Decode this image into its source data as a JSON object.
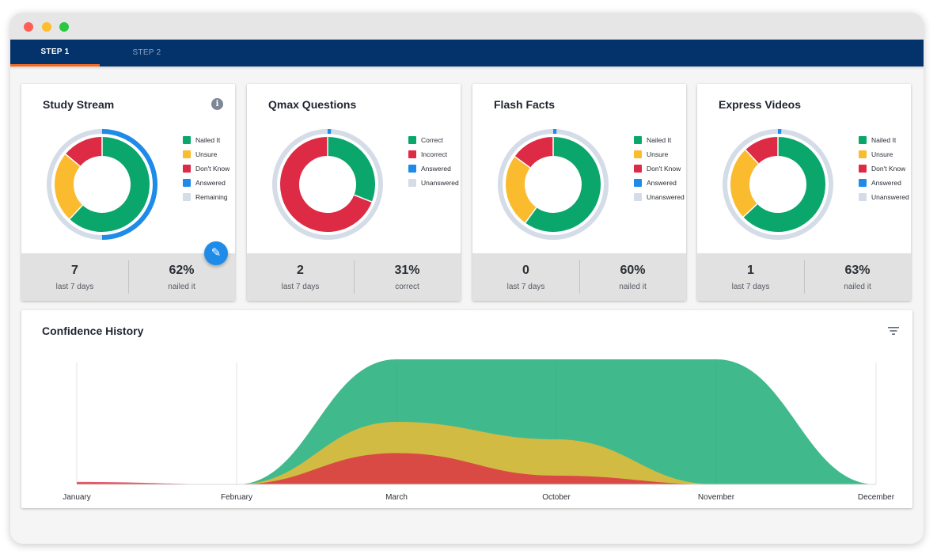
{
  "window": {
    "tabs": [
      {
        "label": "STEP 1",
        "active": true
      },
      {
        "label": "STEP 2",
        "active": false
      }
    ]
  },
  "colors": {
    "nailed": "#0aa66b",
    "unsure": "#fbbb2e",
    "dontknow": "#dd2a45",
    "answered": "#1e8be8",
    "remaining": "#d4dce8",
    "navy": "#04326a",
    "accent": "#f06a23"
  },
  "cards": [
    {
      "title": "Study Stream",
      "has_info": true,
      "info_icon": "info-icon",
      "edit_icon": "pencil-icon",
      "legend": [
        "Nailed It",
        "Unsure",
        "Don't Know",
        "Answered",
        "Remaining"
      ],
      "legend_colors": [
        "#0aa66b",
        "#fbbb2e",
        "#dd2a45",
        "#1e8be8",
        "#d4dce8"
      ],
      "inner_segments": [
        {
          "color": "#0aa66b",
          "fraction": 0.62
        },
        {
          "color": "#fbbb2e",
          "fraction": 0.24
        },
        {
          "color": "#dd2a45",
          "fraction": 0.14
        }
      ],
      "outer_answered_fraction": 0.5,
      "stat_left": {
        "value": "7",
        "label": "last 7 days"
      },
      "stat_right": {
        "value": "62%",
        "label": "nailed it"
      }
    },
    {
      "title": "Qmax Questions",
      "has_info": false,
      "legend": [
        "Correct",
        "Incorrect",
        "Answered",
        "Unanswered"
      ],
      "legend_colors": [
        "#0aa66b",
        "#dd2a45",
        "#1e8be8",
        "#d4dce8"
      ],
      "inner_segments": [
        {
          "color": "#0aa66b",
          "fraction": 0.31
        },
        {
          "color": "#dd2a45",
          "fraction": 0.69
        }
      ],
      "outer_answered_fraction": 0.01,
      "stat_left": {
        "value": "2",
        "label": "last 7 days"
      },
      "stat_right": {
        "value": "31%",
        "label": "correct"
      }
    },
    {
      "title": "Flash Facts",
      "has_info": false,
      "legend": [
        "Nailed It",
        "Unsure",
        "Don't Know",
        "Answered",
        "Unanswered"
      ],
      "legend_colors": [
        "#0aa66b",
        "#fbbb2e",
        "#dd2a45",
        "#1e8be8",
        "#d4dce8"
      ],
      "inner_segments": [
        {
          "color": "#0aa66b",
          "fraction": 0.6
        },
        {
          "color": "#fbbb2e",
          "fraction": 0.25
        },
        {
          "color": "#dd2a45",
          "fraction": 0.15
        }
      ],
      "outer_answered_fraction": 0.01,
      "stat_left": {
        "value": "0",
        "label": "last 7 days"
      },
      "stat_right": {
        "value": "60%",
        "label": "nailed it"
      }
    },
    {
      "title": "Express Videos",
      "has_info": false,
      "legend": [
        "Nailed It",
        "Unsure",
        "Don't Know",
        "Answered",
        "Unanswered"
      ],
      "legend_colors": [
        "#0aa66b",
        "#fbbb2e",
        "#dd2a45",
        "#1e8be8",
        "#d4dce8"
      ],
      "inner_segments": [
        {
          "color": "#0aa66b",
          "fraction": 0.63
        },
        {
          "color": "#fbbb2e",
          "fraction": 0.25
        },
        {
          "color": "#dd2a45",
          "fraction": 0.12
        }
      ],
      "outer_answered_fraction": 0.01,
      "stat_left": {
        "value": "1",
        "label": "last 7 days"
      },
      "stat_right": {
        "value": "63%",
        "label": "nailed it"
      }
    }
  ],
  "history": {
    "title": "Confidence History",
    "filter_icon": "filter-icon",
    "chart_data": {
      "type": "area",
      "categories": [
        "January",
        "February",
        "March",
        "October",
        "November",
        "December"
      ],
      "stacked": false,
      "ylim": [
        0,
        100
      ],
      "grid": "vertical",
      "legend": "none",
      "series": [
        {
          "color": "#0aa66b",
          "values": [
            1,
            0,
            100,
            100,
            100,
            0
          ]
        },
        {
          "color": "#fbbb2e",
          "values": [
            1,
            0,
            50,
            36,
            0,
            0
          ]
        },
        {
          "color": "#dd2a45",
          "values": [
            2,
            0,
            25,
            7,
            0,
            0
          ]
        }
      ]
    }
  }
}
